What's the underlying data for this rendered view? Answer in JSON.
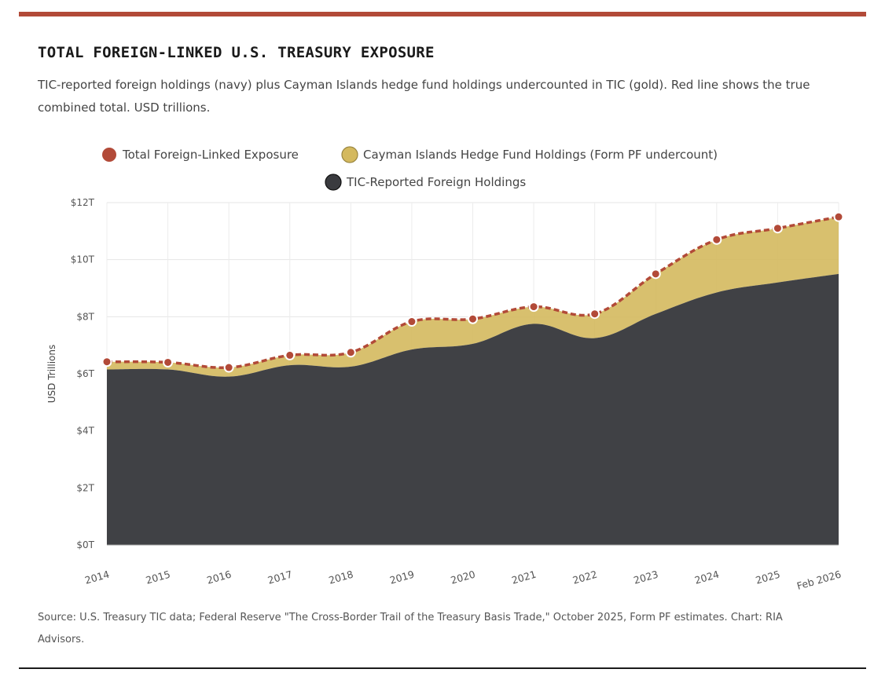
{
  "header": {
    "title": "TOTAL FOREIGN-LINKED U.S. TREASURY EXPOSURE",
    "subtitle": "TIC-reported foreign holdings (navy) plus Cayman Islands hedge fund holdings undercounted in TIC (gold). Red line shows the true combined total. USD trillions."
  },
  "footer": {
    "source": "Source: U.S. Treasury TIC data; Federal Reserve \"The Cross-Border Trail of the Treasury Basis Trade,\" October 2025, Form PF estimates. Chart: RIA Advisors."
  },
  "colors": {
    "accent": "#b24a38",
    "navy": "#3a3b3f",
    "gold": "#d4b95e",
    "rule_dark": "#1b1b1b"
  },
  "chart_data": {
    "type": "area",
    "categories": [
      "2014",
      "2015",
      "2016",
      "2017",
      "2018",
      "2019",
      "2020",
      "2021",
      "2022",
      "2023",
      "2024",
      "2025",
      "Feb 2026"
    ],
    "ylabel": "USD Trillions",
    "ylim": [
      0,
      12
    ],
    "yticks": [
      0,
      2,
      4,
      6,
      8,
      10,
      12
    ],
    "ytick_labels": [
      "$0T",
      "$2T",
      "$4T",
      "$6T",
      "$8T",
      "$10T",
      "$12T"
    ],
    "stacked": true,
    "grid": true,
    "legend_position": "top-center",
    "series": [
      {
        "name": "TIC-Reported Foreign Holdings",
        "type": "area",
        "color": "#3a3b3f",
        "values": [
          6.15,
          6.15,
          5.9,
          6.3,
          6.25,
          6.85,
          7.05,
          7.75,
          7.25,
          8.1,
          8.85,
          9.2,
          9.5
        ]
      },
      {
        "name": "Cayman Islands Hedge Fund Holdings (Form PF undercount)",
        "type": "area",
        "color": "#d4b95e",
        "values": [
          0.27,
          0.25,
          0.32,
          0.35,
          0.5,
          0.98,
          0.87,
          0.6,
          0.85,
          1.4,
          1.85,
          1.9,
          2.0
        ]
      },
      {
        "name": "Total Foreign-Linked Exposure",
        "type": "line",
        "color": "#b24a38",
        "values": [
          6.42,
          6.4,
          6.22,
          6.65,
          6.75,
          7.83,
          7.92,
          8.35,
          8.1,
          9.5,
          10.7,
          11.1,
          11.5
        ]
      }
    ]
  }
}
